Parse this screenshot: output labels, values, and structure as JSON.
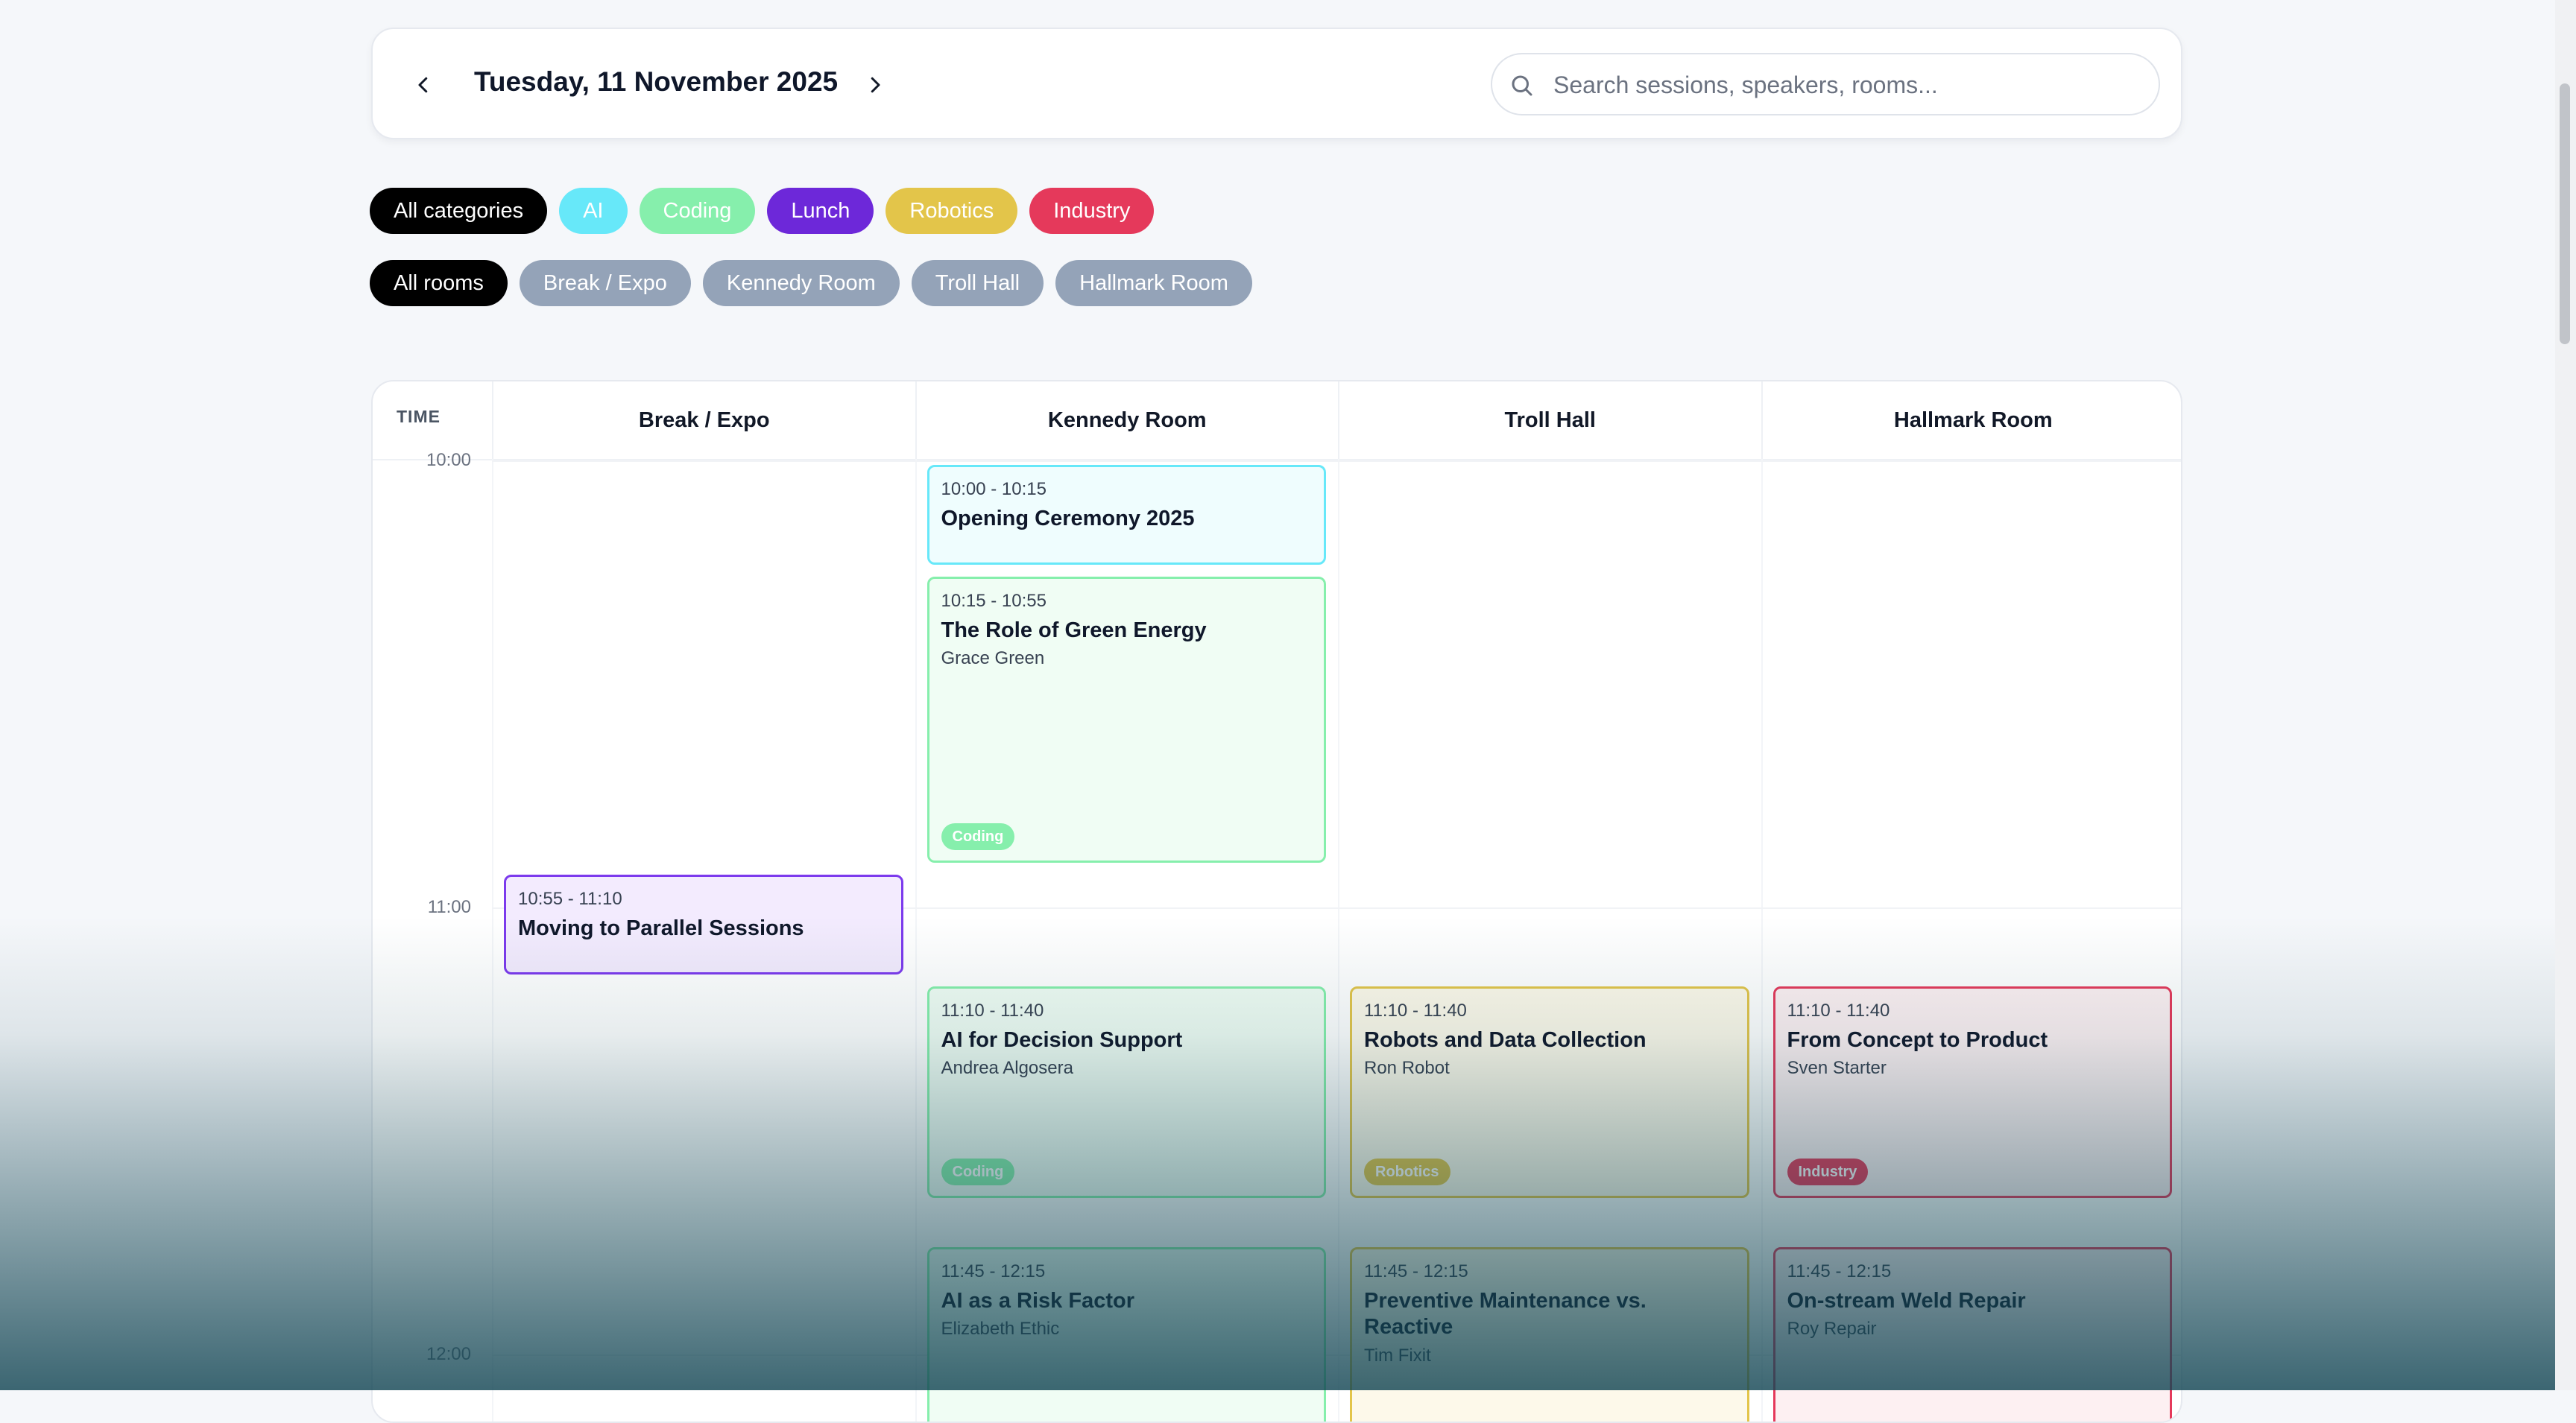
{
  "header": {
    "date_title": "Tuesday, 11 November 2025",
    "search_placeholder": "Search sessions, speakers, rooms..."
  },
  "category_filters": [
    {
      "label": "All categories",
      "color": "#000000",
      "active": true
    },
    {
      "label": "AI",
      "color": "#67e8f9",
      "active": false
    },
    {
      "label": "Coding",
      "color": "#86efac",
      "active": false
    },
    {
      "label": "Lunch",
      "color": "#6d28d9",
      "active": false
    },
    {
      "label": "Robotics",
      "color": "#e3c54a",
      "active": false
    },
    {
      "label": "Industry",
      "color": "#e5395b",
      "active": false
    }
  ],
  "room_filters": [
    {
      "label": "All rooms",
      "color": "#000000",
      "active": true
    },
    {
      "label": "Break / Expo",
      "color": "#94a3b8",
      "active": false
    },
    {
      "label": "Kennedy Room",
      "color": "#94a3b8",
      "active": false
    },
    {
      "label": "Troll Hall",
      "color": "#94a3b8",
      "active": false
    },
    {
      "label": "Hallmark Room",
      "color": "#94a3b8",
      "active": false
    }
  ],
  "grid": {
    "time_header": "TIME",
    "rooms": [
      "Break / Expo",
      "Kennedy Room",
      "Troll Hall",
      "Hallmark Room"
    ],
    "hours": [
      "10:00",
      "11:00",
      "12:00"
    ]
  },
  "sessions": [
    {
      "room": 1,
      "time": "10:00 - 10:15",
      "start_min": 0,
      "end_min": 15,
      "title": "Opening Ceremony 2025",
      "speaker": "",
      "tag": "",
      "border": "#67e8f9",
      "bg": "#effdfe",
      "tag_color": ""
    },
    {
      "room": 1,
      "time": "10:15 - 10:55",
      "start_min": 15,
      "end_min": 55,
      "title": "The Role of Green Energy",
      "speaker": "Grace Green",
      "tag": "Coding",
      "border": "#86efac",
      "bg": "#f0fdf4",
      "tag_color": "#86efac"
    },
    {
      "room": 0,
      "time": "10:55 - 11:10",
      "start_min": 55,
      "end_min": 70,
      "title": "Moving to Parallel Sessions",
      "speaker": "",
      "tag": "",
      "border": "#7c3aed",
      "bg": "#f3ebfe",
      "tag_color": ""
    },
    {
      "room": 1,
      "time": "11:10 - 11:40",
      "start_min": 70,
      "end_min": 100,
      "title": "AI for Decision Support",
      "speaker": "Andrea Algosera",
      "tag": "Coding",
      "border": "#86efac",
      "bg": "#f0fdf4",
      "tag_color": "#86efac"
    },
    {
      "room": 2,
      "time": "11:10 - 11:40",
      "start_min": 70,
      "end_min": 100,
      "title": "Robots and Data Collection",
      "speaker": "Ron Robot",
      "tag": "Robotics",
      "border": "#e3c54a",
      "bg": "#fdf9ea",
      "tag_color": "#e3c54a"
    },
    {
      "room": 3,
      "time": "11:10 - 11:40",
      "start_min": 70,
      "end_min": 100,
      "title": "From Concept to Product",
      "speaker": "Sven Starter",
      "tag": "Industry",
      "border": "#e5395b",
      "bg": "#fdf0f2",
      "tag_color": "#e5395b"
    },
    {
      "room": 1,
      "time": "11:45 - 12:15",
      "start_min": 105,
      "end_min": 135,
      "title": "AI as a Risk Factor",
      "speaker": "Elizabeth Ethic",
      "tag": "",
      "border": "#86efac",
      "bg": "#f0fdf4",
      "tag_color": ""
    },
    {
      "room": 2,
      "time": "11:45 - 12:15",
      "start_min": 105,
      "end_min": 135,
      "title": "Preventive Maintenance vs. Reactive",
      "speaker": "Tim Fixit",
      "tag": "",
      "border": "#e3c54a",
      "bg": "#fdf9ea",
      "tag_color": ""
    },
    {
      "room": 3,
      "time": "11:45 - 12:15",
      "start_min": 105,
      "end_min": 135,
      "title": "On-stream Weld Repair",
      "speaker": "Roy Repair",
      "tag": "",
      "border": "#e5395b",
      "bg": "#fdf0f2",
      "tag_color": ""
    }
  ]
}
